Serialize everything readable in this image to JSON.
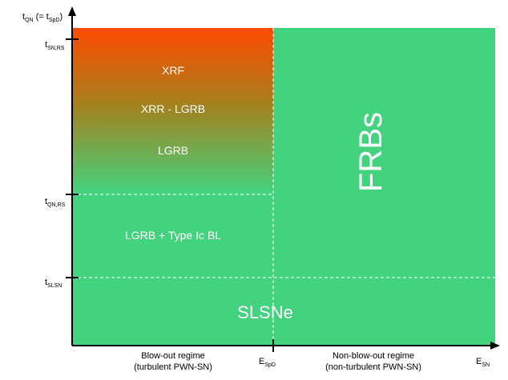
{
  "colors": {
    "green": "#43d37f",
    "orange": "#ff4a00",
    "axis": "#000000",
    "dash": "#ffffff"
  },
  "y_axis": {
    "label": "t",
    "label_sub": "QN",
    "label_mid": " (= t",
    "label_sub2": "SpD",
    "label_end": ")",
    "ticks": [
      {
        "main": "t",
        "sub": "SN,RS"
      },
      {
        "main": "t",
        "sub": "QN,RS"
      },
      {
        "main": "t",
        "sub": "SLSN"
      }
    ]
  },
  "x_axis": {
    "label": "E",
    "label_sub": "SN",
    "tick": {
      "main": "E",
      "sub": "SpD"
    },
    "left_regime": [
      "Blow-out regime",
      "(turbulent PWN-SN)"
    ],
    "right_regime": [
      "Non-blow-out regime",
      "(non-turbulent PWN-SN)"
    ]
  },
  "regions": {
    "xrf": "XRF",
    "xrr": "XRR - LGRB",
    "lgrb": "LGRB",
    "lgrb_ic": "LGRB + Type Ic BL",
    "frbs": "FRBs",
    "slsne": "SLSNe"
  }
}
